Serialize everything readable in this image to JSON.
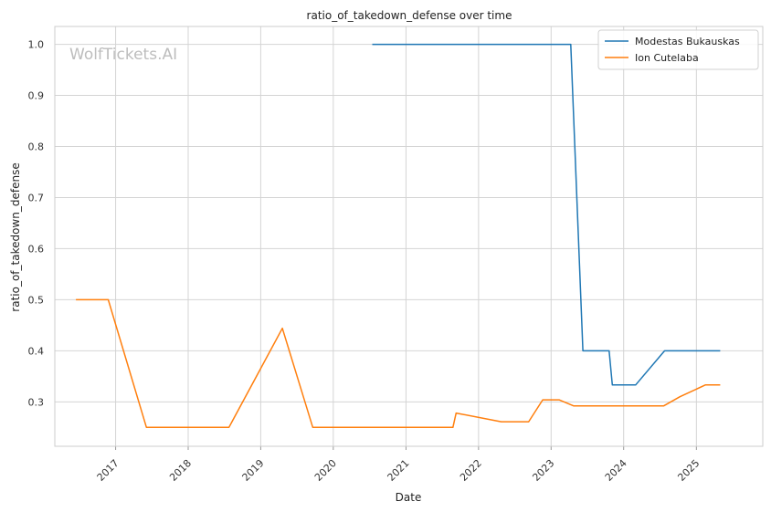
{
  "chart_data": {
    "type": "line",
    "title": "ratio_of_takedown_defense over time",
    "xlabel": "Date",
    "ylabel": "ratio_of_takedown_defense",
    "watermark": "WolfTickets.AI",
    "xlim": [
      "2016-03-01",
      "2025-12-01"
    ],
    "ylim": [
      0.213,
      1.035
    ],
    "x_ticks": [
      {
        "date": "2017-01-01",
        "label": "2017"
      },
      {
        "date": "2018-01-01",
        "label": "2018"
      },
      {
        "date": "2019-01-01",
        "label": "2019"
      },
      {
        "date": "2020-01-01",
        "label": "2020"
      },
      {
        "date": "2021-01-01",
        "label": "2021"
      },
      {
        "date": "2022-01-01",
        "label": "2022"
      },
      {
        "date": "2023-01-01",
        "label": "2023"
      },
      {
        "date": "2024-01-01",
        "label": "2024"
      },
      {
        "date": "2025-01-01",
        "label": "2025"
      }
    ],
    "y_ticks": [
      {
        "value": 0.3,
        "label": "0.3"
      },
      {
        "value": 0.4,
        "label": "0.4"
      },
      {
        "value": 0.5,
        "label": "0.5"
      },
      {
        "value": 0.6,
        "label": "0.6"
      },
      {
        "value": 0.7,
        "label": "0.7"
      },
      {
        "value": 0.8,
        "label": "0.8"
      },
      {
        "value": 0.9,
        "label": "0.9"
      },
      {
        "value": 1.0,
        "label": "1.0"
      }
    ],
    "grid": true,
    "legend_position": "top-right",
    "series": [
      {
        "name": "Modestas Bukauskas",
        "color": "#1f77b4",
        "points": [
          {
            "x": "2020-07-15",
            "y": 1.0
          },
          {
            "x": "2023-04-10",
            "y": 1.0
          },
          {
            "x": "2023-06-10",
            "y": 0.4
          },
          {
            "x": "2023-10-20",
            "y": 0.4
          },
          {
            "x": "2023-11-05",
            "y": 0.333
          },
          {
            "x": "2024-03-01",
            "y": 0.333
          },
          {
            "x": "2024-07-25",
            "y": 0.4
          },
          {
            "x": "2025-05-01",
            "y": 0.4
          }
        ]
      },
      {
        "name": "Ion Cutelaba",
        "color": "#ff7f0e",
        "points": [
          {
            "x": "2016-06-15",
            "y": 0.5
          },
          {
            "x": "2016-11-25",
            "y": 0.5
          },
          {
            "x": "2017-06-05",
            "y": 0.25
          },
          {
            "x": "2018-07-25",
            "y": 0.25
          },
          {
            "x": "2019-04-20",
            "y": 0.444
          },
          {
            "x": "2019-09-20",
            "y": 0.25
          },
          {
            "x": "2021-08-25",
            "y": 0.25
          },
          {
            "x": "2021-09-10",
            "y": 0.278
          },
          {
            "x": "2022-04-25",
            "y": 0.261
          },
          {
            "x": "2022-09-10",
            "y": 0.261
          },
          {
            "x": "2022-11-20",
            "y": 0.304
          },
          {
            "x": "2023-02-10",
            "y": 0.304
          },
          {
            "x": "2023-04-25",
            "y": 0.292
          },
          {
            "x": "2024-07-20",
            "y": 0.292
          },
          {
            "x": "2024-10-10",
            "y": 0.31
          },
          {
            "x": "2025-02-15",
            "y": 0.333
          },
          {
            "x": "2025-05-01",
            "y": 0.333
          }
        ]
      }
    ]
  }
}
